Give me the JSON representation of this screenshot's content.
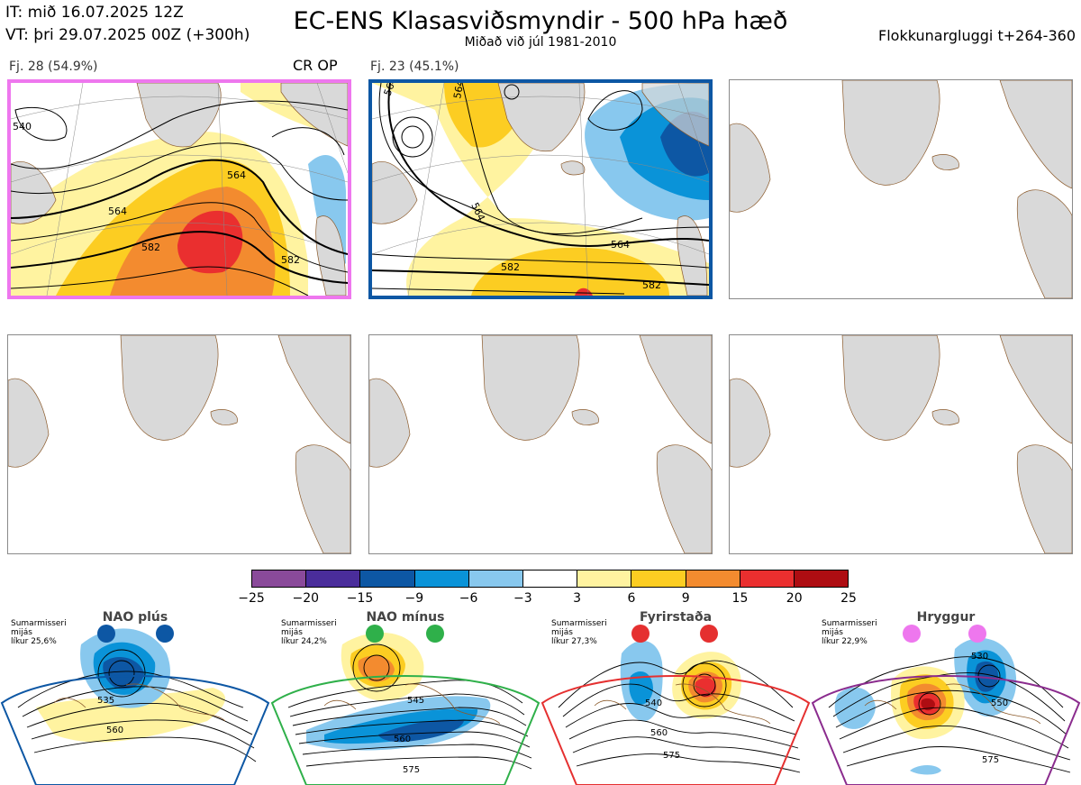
{
  "header": {
    "it_line": "IT: mið 16.07.2025 12Z",
    "vt_line": "VT: þri 29.07.2025 00Z  (+300h)",
    "title": "EC-ENS Klasasviðsmyndir - 500 hPa hæð",
    "subtitle": "Miðað við júl 1981-2010",
    "window": "Flokkunargluggi t+264-360"
  },
  "clusters": [
    {
      "label": "Fj. 28 (54.9%)",
      "op_label": "CR OP",
      "frame_color": "#ee77ee",
      "contour_labels": [
        "564",
        "564",
        "582",
        "582",
        "540"
      ]
    },
    {
      "label": "Fj. 23 (45.1%)",
      "frame_color": "#0d57a4",
      "contour_labels": [
        "564",
        "564",
        "564",
        "582",
        "582",
        "564"
      ]
    }
  ],
  "colorbar": {
    "ticks": [
      "−25",
      "−20",
      "−15",
      "−9",
      "−6",
      "−3",
      "3",
      "6",
      "9",
      "15",
      "20",
      "25"
    ],
    "colors": [
      "#8a4a9a",
      "#4a2d9b",
      "#0d57a4",
      "#0a93d8",
      "#88c8ee",
      "#ffffff",
      "#fff3a0",
      "#fccd22",
      "#f38b2f",
      "#ea2f2f",
      "#ae0d12"
    ]
  },
  "regimes": [
    {
      "name": "NAO plús",
      "info": [
        "Sumarmisseri",
        "mijás",
        "líkur 25,6%"
      ],
      "color": "#0d57a4",
      "contour_labels": [
        "535",
        "560"
      ]
    },
    {
      "name": "NAO mínus",
      "info": [
        "Sumarmisseri",
        "mijás",
        "líkur 24,2%"
      ],
      "color": "#2fb04a",
      "contour_labels": [
        "545",
        "560",
        "575"
      ]
    },
    {
      "name": "Fyrirstaða",
      "info": [
        "Sumarmisseri",
        "mijás",
        "líkur 27,3%"
      ],
      "color": "#e53030",
      "contour_labels": [
        "540",
        "560",
        "575"
      ]
    },
    {
      "name": "Hryggur",
      "info": [
        "Sumarmisseri",
        "mijás",
        "líkur 22,9%"
      ],
      "color": "#ee77ee",
      "contour_labels": [
        "530",
        "550",
        "575"
      ]
    }
  ]
}
